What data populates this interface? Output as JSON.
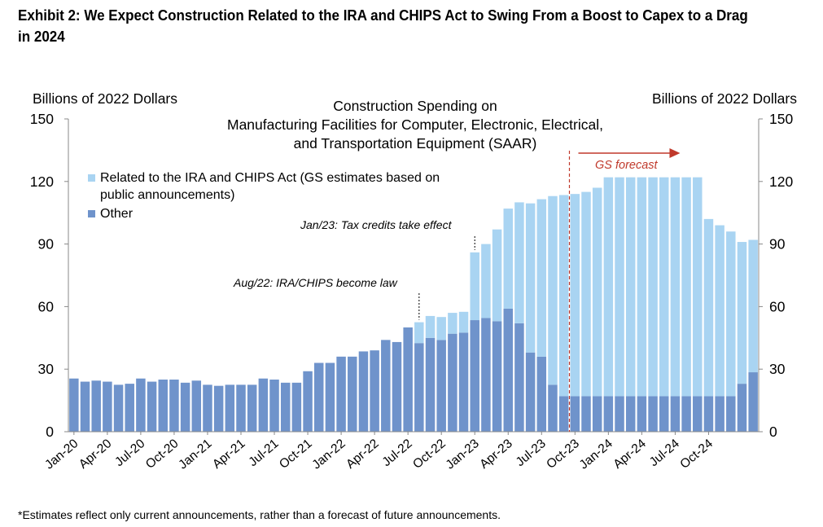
{
  "exhibit_title": "Exhibit 2: We Expect Construction Related to the IRA and CHIPS Act to Swing From a Boost to Capex to a Drag in 2024",
  "footnote": "*Estimates reflect only current announcements, rather than a forecast of future announcements.",
  "chart_data": {
    "type": "bar",
    "stacked": true,
    "title_lines": [
      "Construction Spending on",
      "Manufacturing Facilities for Computer, Electronic, Electrical,",
      "and Transportation Equipment (SAAR)"
    ],
    "ylabel_left": "Billions of 2022 Dollars",
    "ylabel_right": "Billions of 2022 Dollars",
    "ylim": [
      0,
      150
    ],
    "yticks": [
      0,
      30,
      60,
      90,
      120,
      150
    ],
    "grid": false,
    "legend_position": "top-left",
    "colors": {
      "ira_chips": "#a9d4f2",
      "other": "#6f93cb",
      "forecast": "#c0392b"
    },
    "x_labels": [
      "Jan-20",
      "Apr-20",
      "Jul-20",
      "Oct-20",
      "Jan-21",
      "Apr-21",
      "Jul-21",
      "Oct-21",
      "Jan-22",
      "Apr-22",
      "Jul-22",
      "Oct-22",
      "Jan-23",
      "Apr-23",
      "Jul-23",
      "Oct-23",
      "Jan-24",
      "Apr-24",
      "Jul-24",
      "Oct-24"
    ],
    "series": [
      {
        "name": "Other",
        "values": [
          25.5,
          24,
          24.5,
          24,
          22.5,
          23,
          25.5,
          24,
          25,
          25,
          23.5,
          24.5,
          22.5,
          22,
          22.5,
          22.5,
          22.5,
          25.5,
          25,
          23.5,
          23.5,
          29,
          33,
          33,
          36,
          36,
          38.5,
          39,
          44,
          43,
          50,
          42.5,
          45,
          44,
          47,
          47.5,
          53.5,
          54.5,
          53,
          59,
          52,
          38,
          36,
          22.5,
          17,
          17,
          17,
          17,
          17,
          17,
          17,
          17,
          17,
          17,
          17,
          17,
          17,
          17,
          17,
          17,
          23,
          28.5
        ]
      },
      {
        "name": "Related to the IRA and CHIPS Act (GS estimates based on public announcements)",
        "values": [
          0,
          0,
          0,
          0,
          0,
          0,
          0,
          0,
          0,
          0,
          0,
          0,
          0,
          0,
          0,
          0,
          0,
          0,
          0,
          0,
          0,
          0,
          0,
          0,
          0,
          0,
          0,
          0,
          0,
          0,
          0,
          10,
          10.5,
          11,
          10,
          10,
          32.5,
          35.5,
          44,
          48,
          58,
          71.5,
          75.5,
          90.5,
          96.5,
          97,
          98,
          100,
          105,
          105,
          105,
          105,
          105,
          105,
          105,
          105,
          105,
          85,
          82,
          79,
          68,
          63.5
        ]
      }
    ],
    "annotations": [
      {
        "text": "Aug/22: IRA/CHIPS become law",
        "category_index": 31
      },
      {
        "text": "Jan/23: Tax credits take effect",
        "category_index": 36
      },
      {
        "text": "GS forecast",
        "category_index": 45
      }
    ]
  }
}
